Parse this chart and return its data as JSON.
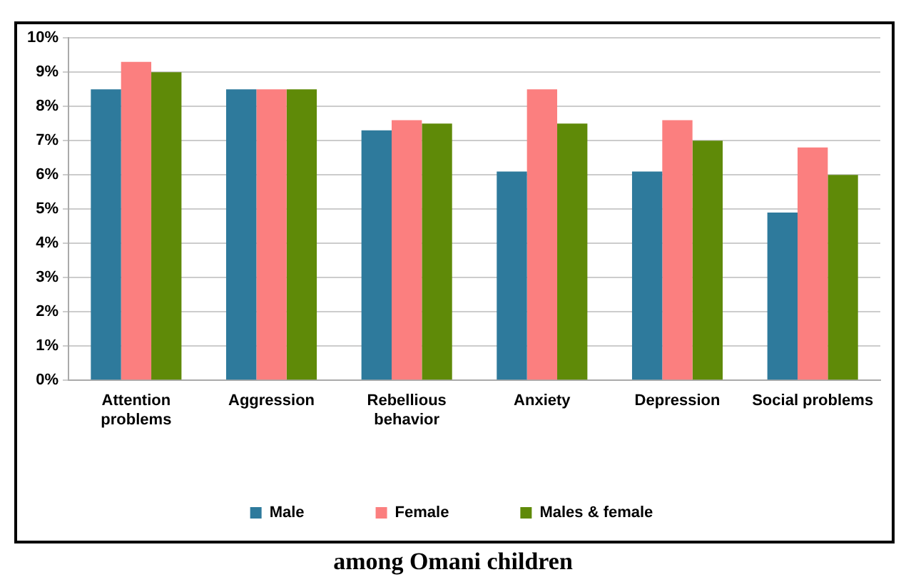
{
  "chart_data": {
    "type": "bar",
    "categories": [
      "Attention problems",
      "Aggression",
      "Rebellious behavior",
      "Anxiety",
      "Depression",
      "Social problems"
    ],
    "series": [
      {
        "name": "Male",
        "color": "#2e7a9c",
        "values": [
          8.5,
          8.5,
          7.3,
          6.1,
          6.1,
          4.9
        ]
      },
      {
        "name": "Female",
        "color": "#fb7f7f",
        "values": [
          9.3,
          8.5,
          7.6,
          8.5,
          7.6,
          6.8
        ]
      },
      {
        "name": "Males & female",
        "color": "#5f8a08",
        "values": [
          9.0,
          8.5,
          7.5,
          7.5,
          7.0,
          6.0
        ]
      }
    ],
    "ylim": [
      0,
      10
    ],
    "yticks": [
      {
        "value": 0,
        "label": "0%"
      },
      {
        "value": 1,
        "label": "1%"
      },
      {
        "value": 2,
        "label": "2%"
      },
      {
        "value": 3,
        "label": "3%"
      },
      {
        "value": 4,
        "label": "4%"
      },
      {
        "value": 5,
        "label": "5%"
      },
      {
        "value": 6,
        "label": "6%"
      },
      {
        "value": 7,
        "label": "7%"
      },
      {
        "value": 8,
        "label": "8%"
      },
      {
        "value": 9,
        "label": "9%"
      },
      {
        "value": 10,
        "label": "10%"
      }
    ],
    "grid": "y",
    "legend": "bottom",
    "annotations": [
      "among Omani children"
    ]
  }
}
